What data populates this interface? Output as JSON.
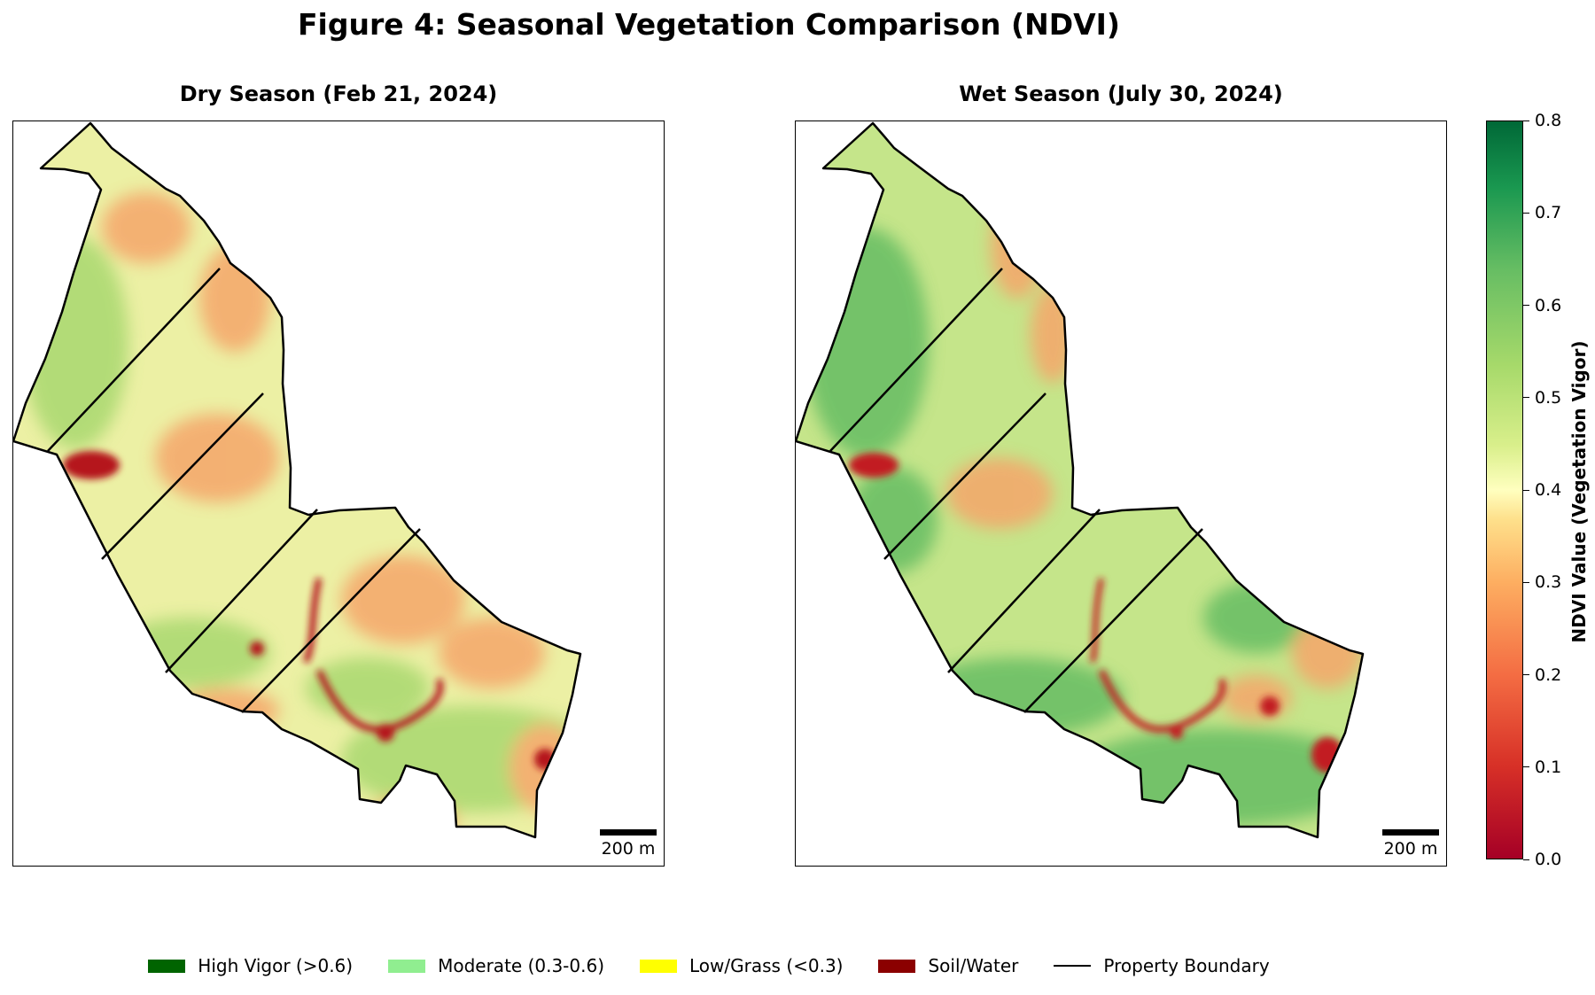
{
  "figure": {
    "title": "Figure 4: Seasonal Vegetation Comparison (NDVI)"
  },
  "panels": [
    {
      "title": "Dry Season (Feb 21, 2024)",
      "scale_label": "200 m"
    },
    {
      "title": "Wet Season (July 30, 2024)",
      "scale_label": "200 m"
    }
  ],
  "colorbar": {
    "label": "NDVI Value (Vegetation Vigor)",
    "min": 0.0,
    "max": 0.8,
    "ticks": [
      "0.0",
      "0.1",
      "0.2",
      "0.3",
      "0.4",
      "0.5",
      "0.6",
      "0.7",
      "0.8"
    ],
    "colormap": "RdYlGn"
  },
  "legend": [
    {
      "label": "High Vigor (>0.6)",
      "color": "#006400",
      "kind": "patch"
    },
    {
      "label": "Moderate (0.3-0.6)",
      "color": "#90ee90",
      "kind": "patch"
    },
    {
      "label": "Low/Grass (<0.3)",
      "color": "#ffff00",
      "kind": "patch"
    },
    {
      "label": "Soil/Water",
      "color": "#8b0000",
      "kind": "patch"
    },
    {
      "label": "Property Boundary",
      "color": "#000000",
      "kind": "line"
    }
  ],
  "seasons": {
    "dry": {
      "base_color": "#ecf0a4",
      "stress_color": "#f5a66a",
      "green_color": "#a9d870",
      "soil_color": "#b5171f"
    },
    "wet": {
      "base_color": "#c5e58a",
      "stress_color": "#f5a66a",
      "green_color": "#66bd63",
      "soil_color": "#c21b22"
    }
  }
}
